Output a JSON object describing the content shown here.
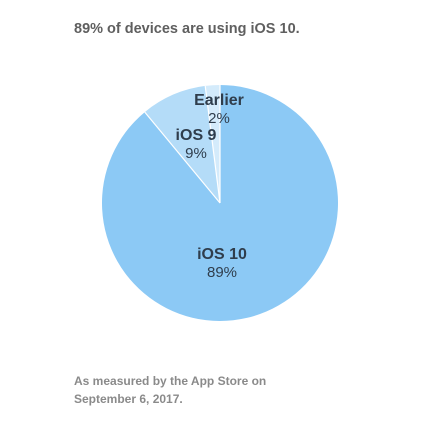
{
  "headline": "89% of devices are using iOS 10.",
  "footnote": {
    "line1": "As measured by the App Store on",
    "line2": "September 6, 2017."
  },
  "colors": {
    "ios10": "#8cc9f5",
    "ios9": "#b4dcf8",
    "earlier": "#d4ebfb",
    "separator": "#ffffff"
  },
  "chart_data": {
    "type": "pie",
    "title": "89% of devices are using iOS 10.",
    "start": "top",
    "direction": "counterclockwise",
    "slices": [
      {
        "name": "Earlier",
        "value": 2,
        "value_label": "2%"
      },
      {
        "name": "iOS 9",
        "value": 9,
        "value_label": "9%"
      },
      {
        "name": "iOS 10",
        "value": 89,
        "value_label": "89%"
      }
    ]
  }
}
